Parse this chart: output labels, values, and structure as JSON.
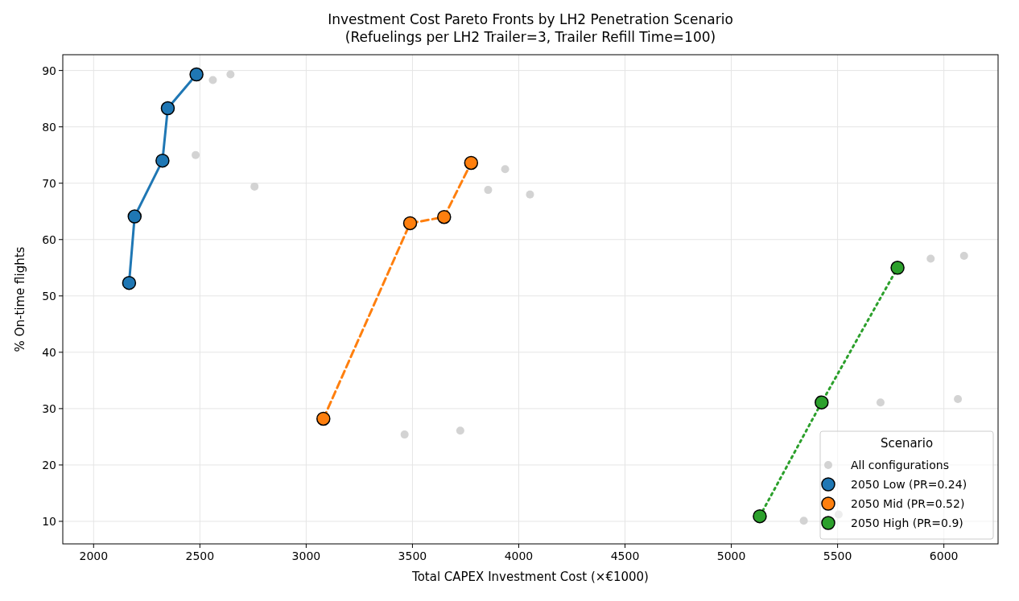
{
  "chart_data": {
    "type": "scatter",
    "title": "Investment Cost Pareto Fronts by LH2 Penetration Scenario",
    "subtitle": "(Refuelings per LH2 Trailer=3, Trailer Refill Time=100)",
    "xlabel": "Total CAPEX Investment Cost (×€1000)",
    "ylabel": "% On-time flights",
    "legend_title": "Scenario",
    "legend": "bottom right",
    "grid": true,
    "marker": "circle",
    "xlim": [
      1855,
      6255
    ],
    "xticks": [
      2000,
      2500,
      3000,
      3500,
      4000,
      4500,
      5000,
      5500,
      6000
    ],
    "ylim": [
      6,
      92.8
    ],
    "yticks": [
      10,
      20,
      30,
      40,
      50,
      60,
      70,
      80,
      90
    ],
    "series": [
      {
        "name": "All configurations",
        "type": "scatter",
        "color": "#d3d3d3",
        "x": [
          2561,
          2644,
          2480,
          2757,
          3856,
          3936,
          4053,
          3463,
          3725,
          5938,
          6095,
          5702,
          6066,
          5341,
          5505
        ],
        "values": [
          88.3,
          89.3,
          75,
          69.4,
          68.8,
          72.5,
          68,
          25.4,
          26.1,
          56.6,
          57.1,
          31.1,
          31.7,
          10.1,
          11.2
        ]
      },
      {
        "name": "2050 Low (PR=0.24)",
        "type": "line",
        "color": "#1f77b4",
        "line_style": "solid",
        "x": [
          2167,
          2193,
          2324,
          2349,
          2484
        ],
        "values": [
          52.3,
          64.1,
          74,
          83.3,
          89.3
        ]
      },
      {
        "name": "2050 Mid (PR=0.52)",
        "type": "line",
        "color": "#ff7f0e",
        "line_style": "dashed",
        "x": [
          3081,
          3489,
          3649,
          3776
        ],
        "values": [
          28.2,
          62.9,
          64,
          73.6
        ]
      },
      {
        "name": "2050 High (PR=0.9)",
        "type": "line",
        "color": "#2ca02c",
        "line_style": "dotted",
        "x": [
          5134,
          5425,
          5782
        ],
        "values": [
          10.9,
          31.1,
          55
        ]
      }
    ]
  }
}
